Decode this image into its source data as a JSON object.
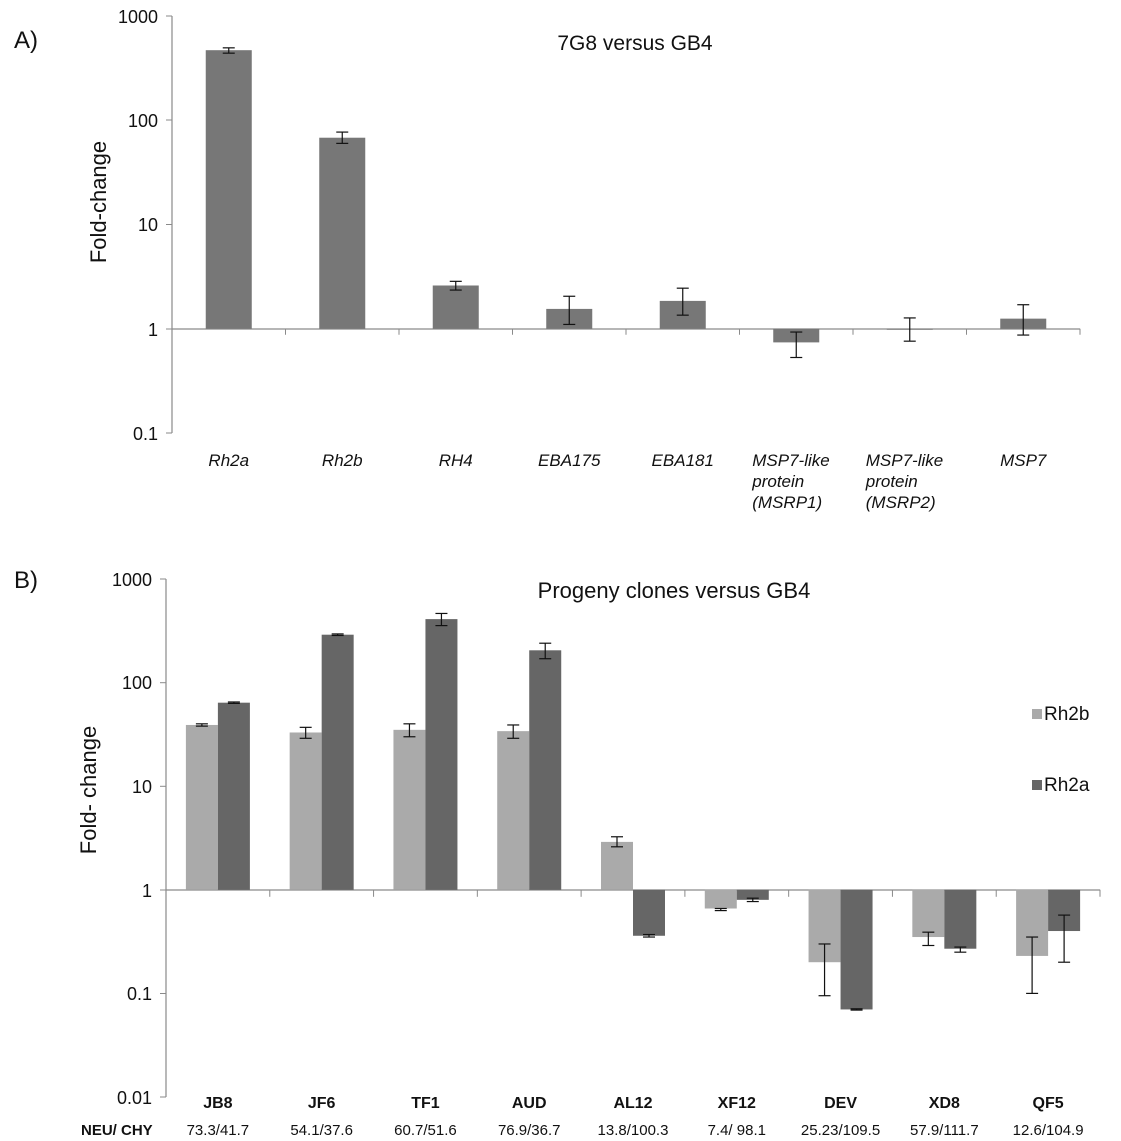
{
  "chart_data": [
    {
      "panel_label": "A)",
      "type": "bar",
      "title": "7G8 versus GB4",
      "ylabel": "Fold-change",
      "xlabel": "",
      "yscale": "log",
      "ylim": [
        0.1,
        1000
      ],
      "yticks": [
        "0.1",
        "1",
        "10",
        "100",
        "1000"
      ],
      "baseline": 1,
      "grid": false,
      "categories": [
        [
          "Rh2a"
        ],
        [
          "Rh2b"
        ],
        [
          "RH4"
        ],
        [
          "EBA175"
        ],
        [
          "EBA181"
        ],
        [
          "MSP7-like",
          "protein",
          "(MSRP1)"
        ],
        [
          "MSP7-like",
          "protein",
          "(MSRP2)"
        ],
        [
          "MSP7"
        ]
      ],
      "series": [
        {
          "values": [
            470,
            68,
            2.6,
            1.55,
            1.85,
            0.74,
            1.0,
            1.25
          ],
          "err_low": [
            440,
            60,
            2.35,
            1.1,
            1.35,
            0.53,
            0.76,
            0.87
          ],
          "err_high": [
            495,
            77,
            2.85,
            2.05,
            2.45,
            0.93,
            1.27,
            1.7
          ],
          "color": "#777777"
        }
      ]
    },
    {
      "panel_label": "B)",
      "type": "bar",
      "title": "Progeny clones versus GB4",
      "ylabel": "Fold- change",
      "xlabel": "",
      "yscale": "log",
      "ylim": [
        0.01,
        1000
      ],
      "yticks": [
        "0.01",
        "0.1",
        "1",
        "10",
        "100",
        "1000"
      ],
      "baseline": 1,
      "grid": false,
      "legend_position": "right",
      "categories": [
        "JB8",
        "JF6",
        "TF1",
        "AUD",
        "AL12",
        "XF12",
        "DEV",
        "XD8",
        "QF5"
      ],
      "row_label": "NEU/ CHY",
      "row_values": [
        "73.3/41.7",
        "54.1/37.6",
        "60.7/51.6",
        "76.9/36.7",
        "13.8/100.3",
        "7.4/ 98.1",
        "25.23/109.5",
        "57.9/111.7",
        "12.6/104.9"
      ],
      "series": [
        {
          "name": "Rh2b",
          "color": "#aaaaaa",
          "values": [
            39,
            33,
            35,
            34,
            2.9,
            0.66,
            0.2,
            0.35,
            0.23
          ],
          "err_low": [
            38,
            29,
            30,
            29,
            2.6,
            0.63,
            0.095,
            0.29,
            0.1
          ],
          "err_high": [
            40,
            37,
            40,
            39,
            3.25,
            0.66,
            0.3,
            0.39,
            0.35
          ]
        },
        {
          "name": "Rh2a",
          "color": "#666666",
          "values": [
            64,
            290,
            410,
            205,
            0.36,
            0.8,
            0.07,
            0.27,
            0.4
          ],
          "err_low": [
            63,
            285,
            355,
            170,
            0.35,
            0.77,
            0.069,
            0.25,
            0.2
          ],
          "err_high": [
            65,
            295,
            465,
            240,
            0.37,
            0.83,
            0.071,
            0.28,
            0.57
          ]
        }
      ]
    }
  ]
}
